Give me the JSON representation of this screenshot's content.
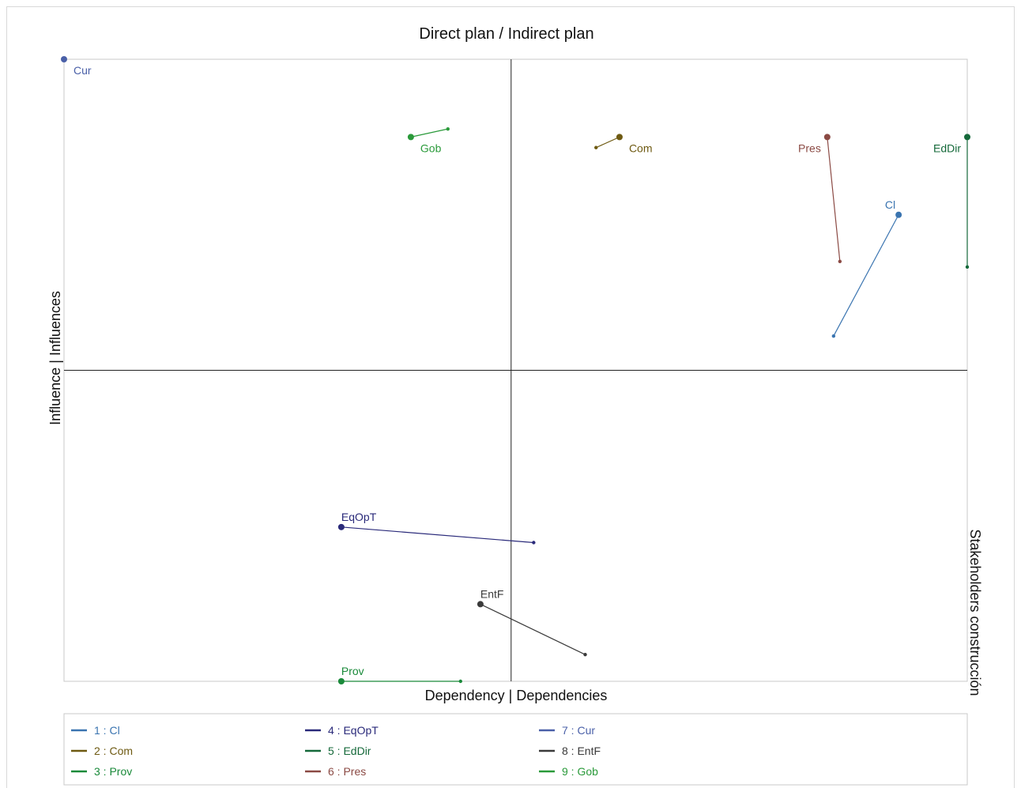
{
  "chart_data": {
    "type": "scatter",
    "title": "Direct plan / Indirect plan",
    "xlabel": "Dependency | Dependencies",
    "ylabel": "Influence | Influences",
    "side_label": "Stakeholders construcción",
    "xlim": [
      0,
      1
    ],
    "ylim": [
      0,
      1
    ],
    "quadrant_lines": {
      "x": 0.495,
      "y": 0.5
    },
    "series": [
      {
        "name": "1 : Cl",
        "label": "Cl",
        "color": "#3a74b0",
        "direct": [
          0.924,
          0.75
        ],
        "indirect": [
          0.852,
          0.555
        ],
        "label_pos": "above-left"
      },
      {
        "name": "2 : Com",
        "label": "Com",
        "color": "#6e5a12",
        "direct": [
          0.615,
          0.875
        ],
        "indirect": [
          0.589,
          0.858
        ],
        "label_pos": "below-right"
      },
      {
        "name": "3 : Prov",
        "label": "Prov",
        "color": "#1a8a3a",
        "direct": [
          0.307,
          0.0
        ],
        "indirect": [
          0.439,
          0.0
        ],
        "label_pos": "above-right"
      },
      {
        "name": "4 : EqOpT",
        "label": "EqOpT",
        "color": "#2a2a7a",
        "direct": [
          0.307,
          0.248
        ],
        "indirect": [
          0.52,
          0.223
        ],
        "label_pos": "above-right"
      },
      {
        "name": "5 : EdDir",
        "label": "EdDir",
        "color": "#15693a",
        "direct": [
          1.0,
          0.875
        ],
        "indirect": [
          1.0,
          0.666
        ],
        "label_pos": "below-left"
      },
      {
        "name": "6 : Pres",
        "label": "Pres",
        "color": "#8b4a44",
        "direct": [
          0.845,
          0.875
        ],
        "indirect": [
          0.859,
          0.675
        ],
        "label_pos": "below-left"
      },
      {
        "name": "7 : Cur",
        "label": "Cur",
        "color": "#4a60a8",
        "direct": [
          0.0,
          1.0
        ],
        "indirect": [
          0.0,
          1.0
        ],
        "label_pos": "below-right"
      },
      {
        "name": "8 : EntF",
        "label": "EntF",
        "color": "#3a3a3a",
        "direct": [
          0.461,
          0.124
        ],
        "indirect": [
          0.577,
          0.043
        ],
        "label_pos": "above-right"
      },
      {
        "name": "9 : Gob",
        "label": "Gob",
        "color": "#2a9a3a",
        "direct": [
          0.384,
          0.875
        ],
        "indirect": [
          0.425,
          0.888
        ],
        "label_pos": "below-right"
      }
    ]
  }
}
